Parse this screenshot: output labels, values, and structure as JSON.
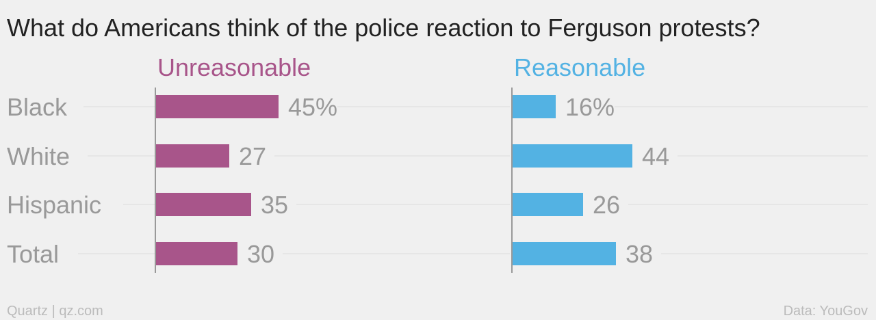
{
  "chart_data": {
    "type": "bar",
    "title": "What do Americans think of the police reaction to Ferguson protests?",
    "categories": [
      "Black",
      "White",
      "Hispanic",
      "Total"
    ],
    "series": [
      {
        "name": "Unreasonable",
        "color": "#a8558a",
        "values": [
          45,
          27,
          35,
          30
        ],
        "value_labels": [
          "45%",
          "27",
          "35",
          "30"
        ]
      },
      {
        "name": "Reasonable",
        "color": "#53b2e3",
        "values": [
          16,
          44,
          26,
          38
        ],
        "value_labels": [
          "16%",
          "44",
          "26",
          "38"
        ]
      }
    ],
    "orientation": "horizontal",
    "layout": "small-multiples"
  },
  "footer": {
    "source_left": "Quartz | qz.com",
    "source_right": "Data: YouGov"
  }
}
